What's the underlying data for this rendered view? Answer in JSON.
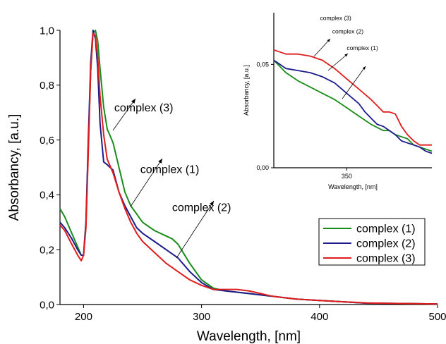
{
  "chart_data": [
    {
      "type": "line",
      "title": "",
      "xlabel": "Wavelength, [nm]",
      "ylabel": "Absorbancy, [a.u.]",
      "xlim": [
        180,
        500
      ],
      "ylim": [
        0,
        1.0
      ],
      "xticks": [
        200,
        300,
        400,
        500
      ],
      "xtick_labels": [
        "200",
        "300",
        "400",
        "500"
      ],
      "yticks": [
        0,
        0.2,
        0.4,
        0.6,
        0.8,
        1.0
      ],
      "ytick_labels": [
        "0,0",
        "0,2",
        "0,4",
        "0,6",
        "0,8",
        "1,0"
      ],
      "grid": false,
      "legend_position": "bottom-right",
      "series": [
        {
          "name": "complex (1)",
          "color": "#1a8c1a",
          "x": [
            180,
            184,
            190,
            195,
            198,
            200,
            202,
            204,
            206,
            208,
            210,
            212,
            214,
            217,
            220,
            225,
            230,
            235,
            240,
            245,
            250,
            260,
            270,
            275,
            280,
            290,
            300,
            310,
            320,
            340,
            360,
            380,
            400,
            420,
            440,
            460,
            480,
            500
          ],
          "y": [
            0.35,
            0.32,
            0.26,
            0.21,
            0.18,
            0.18,
            0.3,
            0.58,
            0.85,
            0.99,
            1.0,
            0.96,
            0.86,
            0.72,
            0.64,
            0.59,
            0.5,
            0.41,
            0.36,
            0.33,
            0.3,
            0.27,
            0.25,
            0.24,
            0.22,
            0.15,
            0.09,
            0.06,
            0.05,
            0.04,
            0.03,
            0.02,
            0.015,
            0.01,
            0.005,
            0.004,
            0.003,
            0.002
          ]
        },
        {
          "name": "complex (2)",
          "color": "#1c1c8c",
          "x": [
            180,
            184,
            190,
            195,
            198,
            200,
            202,
            204,
            206,
            208,
            210,
            212,
            214,
            217,
            220,
            225,
            230,
            235,
            240,
            245,
            250,
            260,
            270,
            280,
            290,
            300,
            310,
            320,
            340,
            360,
            380,
            400,
            420,
            440,
            460,
            480,
            500
          ],
          "y": [
            0.3,
            0.28,
            0.24,
            0.2,
            0.18,
            0.18,
            0.3,
            0.6,
            0.88,
            1.0,
            0.97,
            0.86,
            0.66,
            0.52,
            0.51,
            0.49,
            0.41,
            0.36,
            0.32,
            0.28,
            0.26,
            0.23,
            0.2,
            0.17,
            0.12,
            0.08,
            0.055,
            0.05,
            0.04,
            0.03,
            0.02,
            0.015,
            0.01,
            0.005,
            0.004,
            0.003,
            0.002
          ]
        },
        {
          "name": "complex (3)",
          "color": "#e01c1c",
          "x": [
            180,
            184,
            190,
            195,
            198,
            200,
            202,
            204,
            206,
            208,
            210,
            212,
            214,
            217,
            220,
            225,
            230,
            235,
            240,
            245,
            250,
            260,
            270,
            280,
            290,
            300,
            310,
            320,
            330,
            340,
            350,
            360,
            380,
            400,
            420,
            440,
            460,
            480,
            500
          ],
          "y": [
            0.29,
            0.27,
            0.22,
            0.18,
            0.16,
            0.18,
            0.28,
            0.55,
            0.85,
            0.99,
            0.98,
            0.9,
            0.76,
            0.62,
            0.53,
            0.48,
            0.41,
            0.35,
            0.3,
            0.26,
            0.23,
            0.19,
            0.15,
            0.12,
            0.09,
            0.07,
            0.055,
            0.055,
            0.055,
            0.05,
            0.04,
            0.03,
            0.02,
            0.015,
            0.01,
            0.006,
            0.004,
            0.003,
            0.002
          ]
        }
      ],
      "annotations": [
        {
          "text": "complex (3)",
          "x": 226,
          "y": 0.705
        },
        {
          "text": "complex (1)",
          "x": 248,
          "y": 0.48
        },
        {
          "text": "complex (2)",
          "x": 275,
          "y": 0.34
        }
      ]
    },
    {
      "type": "line",
      "title": "",
      "xlabel": "Wavelength, [nm]",
      "ylabel": "Absorbancy, [a.u.]",
      "xlim": [
        290,
        420
      ],
      "ylim": [
        0,
        0.075
      ],
      "xticks": [
        350
      ],
      "xtick_labels": [
        "350"
      ],
      "yticks": [
        0,
        0.05
      ],
      "ytick_labels": [
        "0,00",
        "0,05"
      ],
      "grid": false,
      "series": [
        {
          "name": "complex (1)",
          "color": "#1a8c1a",
          "x": [
            290,
            300,
            310,
            320,
            330,
            340,
            350,
            360,
            370,
            380,
            385,
            390,
            395,
            400,
            405,
            410,
            415,
            420
          ],
          "y": [
            0.052,
            0.046,
            0.042,
            0.039,
            0.036,
            0.033,
            0.029,
            0.025,
            0.021,
            0.018,
            0.018,
            0.016,
            0.015,
            0.014,
            0.011,
            0.01,
            0.009,
            0.008
          ]
        },
        {
          "name": "complex (2)",
          "color": "#1c1c8c",
          "x": [
            290,
            295,
            300,
            310,
            320,
            330,
            340,
            350,
            360,
            365,
            370,
            375,
            380,
            385,
            390,
            395,
            400,
            405,
            410,
            415,
            420
          ],
          "y": [
            0.052,
            0.05,
            0.048,
            0.047,
            0.046,
            0.044,
            0.041,
            0.036,
            0.031,
            0.027,
            0.024,
            0.021,
            0.02,
            0.018,
            0.016,
            0.013,
            0.012,
            0.011,
            0.01,
            0.008,
            0.007
          ]
        },
        {
          "name": "complex (3)",
          "color": "#e01c1c",
          "x": [
            290,
            300,
            310,
            320,
            330,
            340,
            350,
            360,
            370,
            375,
            380,
            385,
            390,
            395,
            400,
            405,
            410,
            415,
            420
          ],
          "y": [
            0.057,
            0.055,
            0.055,
            0.054,
            0.052,
            0.048,
            0.043,
            0.038,
            0.033,
            0.03,
            0.027,
            0.027,
            0.026,
            0.02,
            0.016,
            0.013,
            0.011,
            0.011,
            0.011
          ]
        }
      ],
      "annotations": [
        {
          "text": "complex (3)",
          "x": 328,
          "y": 0.0715
        },
        {
          "text": "complex (2)",
          "x": 338,
          "y": 0.065
        },
        {
          "text": "complex (1)",
          "x": 350,
          "y": 0.057
        }
      ]
    }
  ]
}
